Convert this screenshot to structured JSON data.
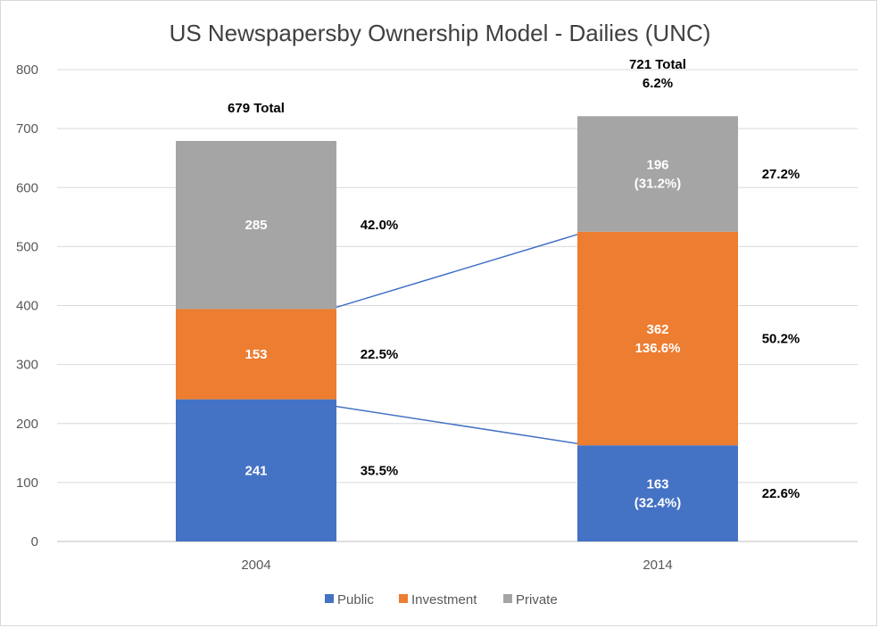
{
  "chart_data": {
    "type": "bar",
    "stacked": true,
    "title": "US Newspapersby Ownership Model - Dailies (UNC)",
    "categories": [
      "2004",
      "2014"
    ],
    "series": [
      {
        "name": "Public",
        "values": [
          241,
          163
        ],
        "color": "#4472c4"
      },
      {
        "name": "Investment",
        "values": [
          153,
          362
        ],
        "color": "#ed7d31"
      },
      {
        "name": "Private",
        "values": [
          285,
          196
        ],
        "color": "#a5a5a5"
      }
    ],
    "ylim": [
      0,
      800
    ],
    "yticks": [
      "0",
      "100",
      "200",
      "300",
      "400",
      "500",
      "600",
      "700",
      "800"
    ],
    "grid": true,
    "legend_position": "bottom",
    "segment_labels": [
      [
        "241",
        "153",
        "285"
      ],
      [
        "163\n(32.4%)",
        "362\n136.6%",
        "196\n(31.2%)"
      ]
    ],
    "share_labels": [
      [
        "35.5%",
        "22.5%",
        "42.0%"
      ],
      [
        "22.6%",
        "50.2%",
        "27.2%"
      ]
    ],
    "total_labels": [
      "679 Total",
      "721 Total\n6.2%"
    ],
    "connector_color": "#4472c4"
  }
}
